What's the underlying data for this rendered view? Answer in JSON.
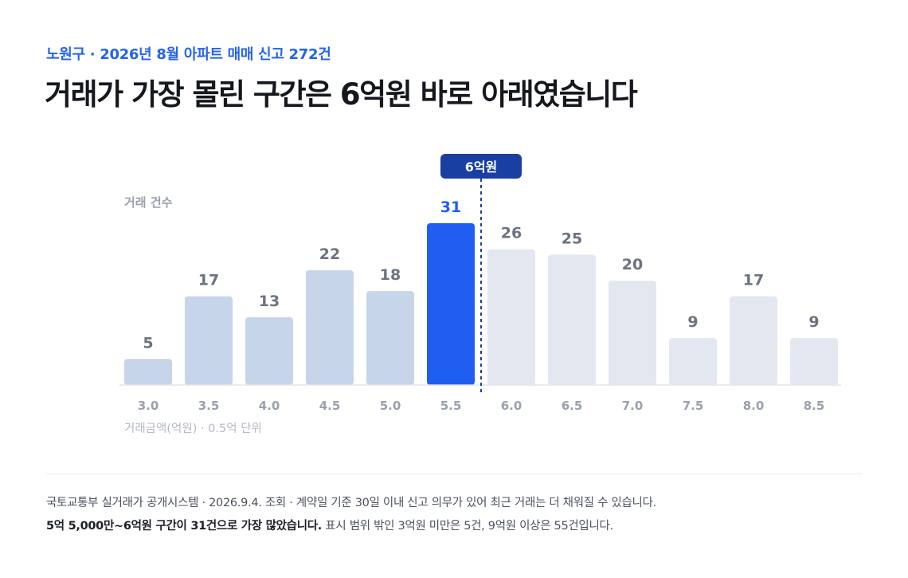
{
  "header": {
    "kicker": "노원구 · 2026년 8월 아파트 매매 신고 272건",
    "headline": "거래가 가장 몰린 구간은 6억원 바로 아래였습니다"
  },
  "chart_data": {
    "type": "bar",
    "ylabel": "거래 건수",
    "xlabel": "거래금액(억원) · 0.5억 단위",
    "categories": [
      "3.0",
      "3.5",
      "4.0",
      "4.5",
      "5.0",
      "5.5",
      "6.0",
      "6.5",
      "7.0",
      "7.5",
      "8.0",
      "8.5"
    ],
    "values": [
      5,
      17,
      13,
      22,
      18,
      31,
      26,
      25,
      20,
      9,
      17,
      9
    ],
    "highlight_category": "5.5",
    "marker": {
      "label": "6억원",
      "at_x": 6.0,
      "style": "dashed"
    },
    "ylim": [
      0,
      31
    ],
    "grid": false,
    "legend": "none",
    "colors": {
      "below_marker": "#c7d5ea",
      "highlight": "#1f5ef0",
      "above_marker": "#e3e7f0",
      "value_label": "#6b7280",
      "highlight_label": "#1f5ef0",
      "marker": "#1a3fa3"
    }
  },
  "footer": {
    "source": "국토교통부 실거래가 공개시스템 · 2026.9.4. 조회 · 계약일 기준 30일 이내 신고 의무가 있어 최근 거래는 더 채워질 수 있습니다.",
    "summary_strong": "5억 5,000만~6억원 구간이 31건으로 가장 많았습니다.",
    "summary_rest": " 표시 범위 밖인 3억원 미만은 5건, 9억원 이상은 55건입니다."
  }
}
